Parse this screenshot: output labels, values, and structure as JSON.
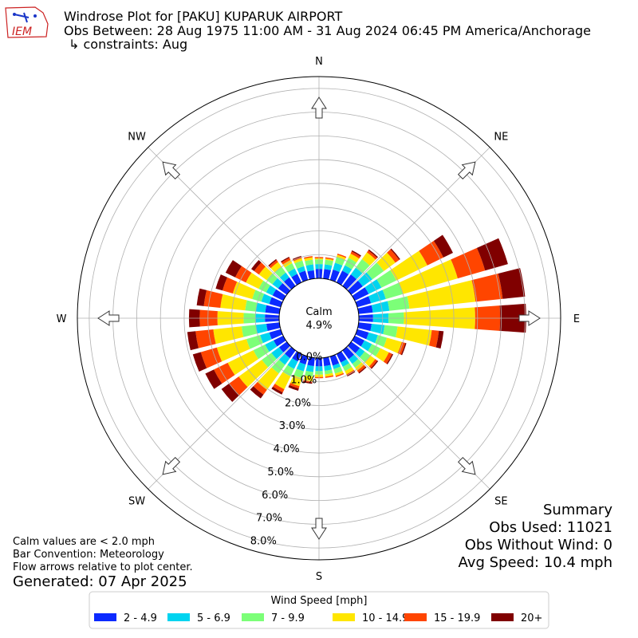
{
  "logo_text": "IEM",
  "header": {
    "title": "Windrose Plot for [PAKU] KUPARUK AIRPORT",
    "obs_between": "Obs Between: 28 Aug 1975 11:00 AM - 31 Aug 2024 06:45 PM America/Anchorage",
    "constraints": "↳ constraints: Aug"
  },
  "notes": {
    "calm_note": "Calm values are < 2.0 mph",
    "bar_convention": "Bar Convention: Meteorology",
    "flow_arrows": "Flow arrows relative to plot center.",
    "generated": "Generated: 07 Apr 2025"
  },
  "summary": {
    "title": "Summary",
    "obs_used": "Obs Used: 11021",
    "obs_without_wind": "Obs Without Wind: 0",
    "avg_speed": "Avg Speed: 10.4 mph"
  },
  "chart_data": {
    "type": "windrose",
    "calm_label": "Calm",
    "calm_value": "4.9%",
    "directions": [
      "N",
      "NE",
      "E",
      "SE",
      "S",
      "SW",
      "W",
      "NW"
    ],
    "radial_ticks": [
      "0.0%",
      "1.0%",
      "2.0%",
      "3.0%",
      "4.0%",
      "5.0%",
      "6.0%",
      "7.0%",
      "8.0%"
    ],
    "radial_max_percent": 8.5,
    "legend_title": "Wind Speed [mph]",
    "speed_bins": [
      {
        "label": "2 - 4.9",
        "color": "#0c2aff"
      },
      {
        "label": "5 - 6.9",
        "color": "#00d4f0"
      },
      {
        "label": "7 - 9.9",
        "color": "#7cff78"
      },
      {
        "label": "10 - 14.9",
        "color": "#ffe600"
      },
      {
        "label": "15 - 19.9",
        "color": "#ff4500"
      },
      {
        "label": "20+",
        "color": "#800000"
      }
    ],
    "sector_directions_deg": [
      0,
      10,
      20,
      30,
      40,
      50,
      60,
      70,
      80,
      90,
      100,
      110,
      120,
      130,
      140,
      150,
      160,
      170,
      180,
      190,
      200,
      210,
      220,
      230,
      240,
      250,
      260,
      270,
      280,
      290,
      300,
      310,
      320,
      330,
      340,
      350
    ],
    "sector_cumulative_percent": [
      [
        0.4,
        0.6,
        0.8,
        0.85,
        0.9,
        0.9
      ],
      [
        0.4,
        0.6,
        0.8,
        0.85,
        0.9,
        0.9
      ],
      [
        0.45,
        0.75,
        1.0,
        1.1,
        1.15,
        1.15
      ],
      [
        0.55,
        0.8,
        1.15,
        1.35,
        1.45,
        1.5
      ],
      [
        0.6,
        0.95,
        1.4,
        1.75,
        1.85,
        1.9
      ],
      [
        0.6,
        1.1,
        1.7,
        2.3,
        2.5,
        2.55
      ],
      [
        0.65,
        1.25,
        1.95,
        3.4,
        4.15,
        4.6
      ],
      [
        0.6,
        1.25,
        2.0,
        4.4,
        5.6,
        6.6
      ],
      [
        0.6,
        1.3,
        2.15,
        4.95,
        6.1,
        7.05
      ],
      [
        0.6,
        1.25,
        1.9,
        4.9,
        5.95,
        7.05
      ],
      [
        0.55,
        1.1,
        1.65,
        3.1,
        3.4,
        3.6
      ],
      [
        0.5,
        0.9,
        1.3,
        1.95,
        2.1,
        2.15
      ],
      [
        0.45,
        0.8,
        1.2,
        1.6,
        1.75,
        1.8
      ],
      [
        0.45,
        0.7,
        1.0,
        1.25,
        1.35,
        1.4
      ],
      [
        0.45,
        0.7,
        0.9,
        1.05,
        1.15,
        1.2
      ],
      [
        0.4,
        0.6,
        0.8,
        0.95,
        1.0,
        1.05
      ],
      [
        0.4,
        0.55,
        0.75,
        0.85,
        0.9,
        0.9
      ],
      [
        0.35,
        0.55,
        0.7,
        0.8,
        0.85,
        0.85
      ],
      [
        0.35,
        0.55,
        0.7,
        0.8,
        0.85,
        0.85
      ],
      [
        0.35,
        0.6,
        0.8,
        1.0,
        1.05,
        1.1
      ],
      [
        0.35,
        0.65,
        0.95,
        1.3,
        1.4,
        1.5
      ],
      [
        0.35,
        0.7,
        1.05,
        1.65,
        1.8,
        1.9
      ],
      [
        0.4,
        0.75,
        1.2,
        2.05,
        2.3,
        2.5
      ],
      [
        0.4,
        0.8,
        1.3,
        2.5,
        3.0,
        3.4
      ],
      [
        0.45,
        0.85,
        1.4,
        2.6,
        3.25,
        3.65
      ],
      [
        0.5,
        0.9,
        1.5,
        2.8,
        3.5,
        3.85
      ],
      [
        0.55,
        1.0,
        1.6,
        2.8,
        3.55,
        3.9
      ],
      [
        0.6,
        1.0,
        1.5,
        2.6,
        3.35,
        3.8
      ],
      [
        0.6,
        1.0,
        1.45,
        2.5,
        3.2,
        3.5
      ],
      [
        0.5,
        0.85,
        1.25,
        2.1,
        2.55,
        2.85
      ],
      [
        0.5,
        0.8,
        1.15,
        1.75,
        2.25,
        2.7
      ],
      [
        0.45,
        0.75,
        1.05,
        1.45,
        1.7,
        1.85
      ],
      [
        0.45,
        0.7,
        1.0,
        1.25,
        1.35,
        1.4
      ],
      [
        0.4,
        0.65,
        0.9,
        1.05,
        1.15,
        1.2
      ],
      [
        0.4,
        0.6,
        0.85,
        0.95,
        1.0,
        1.05
      ],
      [
        0.35,
        0.6,
        0.8,
        0.9,
        0.95,
        0.95
      ]
    ]
  }
}
